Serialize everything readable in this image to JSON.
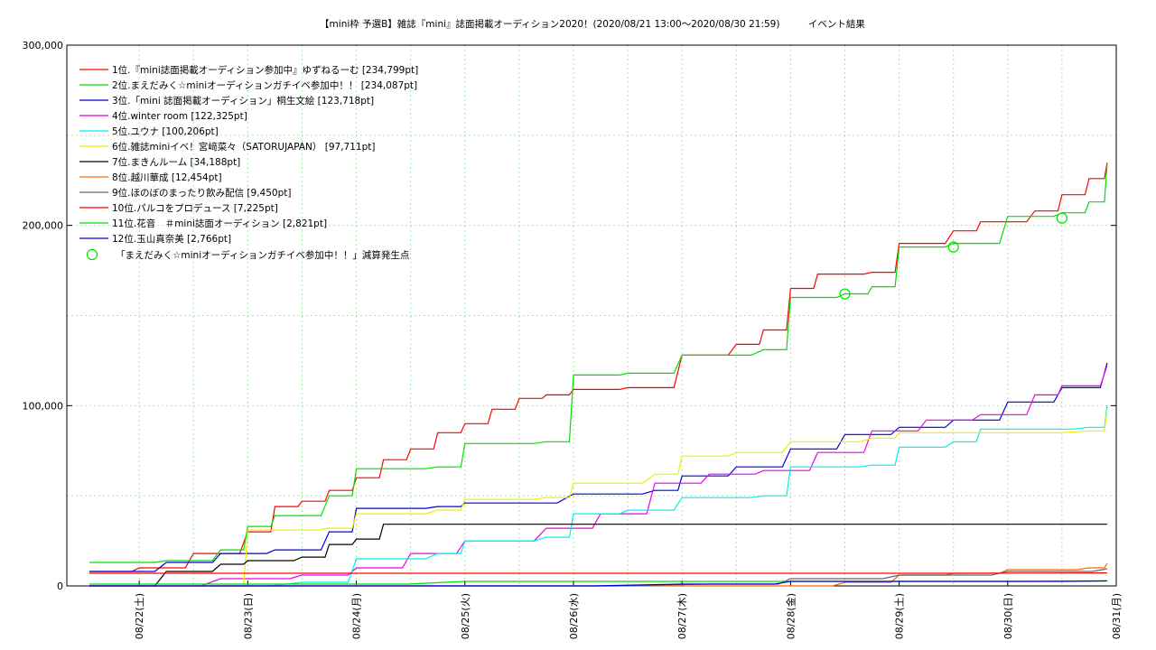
{
  "chart_data": {
    "type": "line",
    "title": "【mini枠 予選B】雑誌『mini』誌面掲載オーディション2020！(2020/08/21 13:00〜2020/08/30 21:59)　　　イベント結果",
    "xlabel": "",
    "ylabel": "",
    "x_ticks": [
      "08/22(土)",
      "08/23(日)",
      "08/24(月)",
      "08/25(火)",
      "08/26(水)",
      "08/27(木)",
      "08/28(金)",
      "08/29(土)",
      "08/30(日)",
      "08/31(月)"
    ],
    "xlim": [
      "2020-08-21 08:00",
      "2020-08-31 00:00"
    ],
    "ylim": [
      0,
      300000
    ],
    "y_ticks": [
      "0",
      "100,000",
      "200,000",
      "300,000"
    ],
    "y_tick_values": [
      0,
      100000,
      200000,
      300000
    ],
    "grid": true,
    "legend_position": "top-left",
    "series": [
      {
        "name": "1位.『mini誌面掲載オーディション参加中』ゆずねるーむ [234,799pt]",
        "color": "#ff0000",
        "points": [
          [
            "2020-08-21 13:00",
            8000
          ],
          [
            "2020-08-22 00:00",
            10000
          ],
          [
            "2020-08-22 12:00",
            18000
          ],
          [
            "2020-08-23 00:00",
            30000
          ],
          [
            "2020-08-23 06:00",
            44000
          ],
          [
            "2020-08-23 12:00",
            47000
          ],
          [
            "2020-08-23 18:00",
            53000
          ],
          [
            "2020-08-24 00:00",
            60000
          ],
          [
            "2020-08-24 06:00",
            70000
          ],
          [
            "2020-08-24 12:00",
            76000
          ],
          [
            "2020-08-24 18:00",
            85000
          ],
          [
            "2020-08-25 00:00",
            90000
          ],
          [
            "2020-08-25 06:00",
            98000
          ],
          [
            "2020-08-25 12:00",
            104000
          ],
          [
            "2020-08-25 18:00",
            106000
          ],
          [
            "2020-08-26 00:00",
            109000
          ],
          [
            "2020-08-26 12:00",
            110000
          ],
          [
            "2020-08-27 00:00",
            128000
          ],
          [
            "2020-08-27 12:00",
            134000
          ],
          [
            "2020-08-27 18:00",
            142000
          ],
          [
            "2020-08-28 00:00",
            165000
          ],
          [
            "2020-08-28 06:00",
            173000
          ],
          [
            "2020-08-28 18:00",
            174000
          ],
          [
            "2020-08-29 00:00",
            190000
          ],
          [
            "2020-08-29 12:00",
            197000
          ],
          [
            "2020-08-29 18:00",
            202000
          ],
          [
            "2020-08-30 06:00",
            208000
          ],
          [
            "2020-08-30 12:00",
            217000
          ],
          [
            "2020-08-30 18:00",
            226000
          ],
          [
            "2020-08-30 21:59",
            234799
          ]
        ]
      },
      {
        "name": "2位.まえだみく☆miniオーディションガチイベ参加中！！ [234,087pt]",
        "color": "#00e000",
        "points": [
          [
            "2020-08-21 13:00",
            13000
          ],
          [
            "2020-08-22 06:00",
            14000
          ],
          [
            "2020-08-22 18:00",
            20000
          ],
          [
            "2020-08-23 00:00",
            33000
          ],
          [
            "2020-08-23 06:00",
            39000
          ],
          [
            "2020-08-23 18:00",
            50000
          ],
          [
            "2020-08-24 00:00",
            65000
          ],
          [
            "2020-08-24 18:00",
            66000
          ],
          [
            "2020-08-25 00:00",
            79000
          ],
          [
            "2020-08-25 18:00",
            80000
          ],
          [
            "2020-08-26 00:00",
            117000
          ],
          [
            "2020-08-26 12:00",
            118000
          ],
          [
            "2020-08-27 00:00",
            128000
          ],
          [
            "2020-08-27 18:00",
            131000
          ],
          [
            "2020-08-28 00:00",
            160000
          ],
          [
            "2020-08-28 12:00",
            162000
          ],
          [
            "2020-08-28 18:00",
            166000
          ],
          [
            "2020-08-29 00:00",
            188000
          ],
          [
            "2020-08-29 12:00",
            190000
          ],
          [
            "2020-08-30 00:00",
            205000
          ],
          [
            "2020-08-30 12:00",
            207000
          ],
          [
            "2020-08-30 18:00",
            213000
          ],
          [
            "2020-08-30 21:59",
            234087
          ]
        ]
      },
      {
        "name": "3位.「mini 誌面掲載オーディション」桐生文絵 [123,718pt]",
        "color": "#0000dd",
        "points": [
          [
            "2020-08-21 13:00",
            8000
          ],
          [
            "2020-08-22 06:00",
            13000
          ],
          [
            "2020-08-22 18:00",
            18000
          ],
          [
            "2020-08-23 06:00",
            20000
          ],
          [
            "2020-08-23 18:00",
            30000
          ],
          [
            "2020-08-24 00:00",
            43000
          ],
          [
            "2020-08-24 18:00",
            44000
          ],
          [
            "2020-08-25 00:00",
            46000
          ],
          [
            "2020-08-26 00:00",
            51000
          ],
          [
            "2020-08-26 18:00",
            53000
          ],
          [
            "2020-08-27 00:00",
            61000
          ],
          [
            "2020-08-27 12:00",
            66000
          ],
          [
            "2020-08-28 00:00",
            76000
          ],
          [
            "2020-08-28 12:00",
            84000
          ],
          [
            "2020-08-29 00:00",
            88000
          ],
          [
            "2020-08-29 12:00",
            92000
          ],
          [
            "2020-08-30 00:00",
            102000
          ],
          [
            "2020-08-30 12:00",
            110000
          ],
          [
            "2020-08-30 21:59",
            123718
          ]
        ]
      },
      {
        "name": "4位.winter room [122,325pt]",
        "color": "#ee00ee",
        "points": [
          [
            "2020-08-21 13:00",
            0
          ],
          [
            "2020-08-22 18:00",
            4000
          ],
          [
            "2020-08-23 12:00",
            6000
          ],
          [
            "2020-08-24 00:00",
            10000
          ],
          [
            "2020-08-24 12:00",
            18000
          ],
          [
            "2020-08-25 00:00",
            25000
          ],
          [
            "2020-08-25 18:00",
            32000
          ],
          [
            "2020-08-26 06:00",
            40000
          ],
          [
            "2020-08-26 18:00",
            57000
          ],
          [
            "2020-08-27 06:00",
            62000
          ],
          [
            "2020-08-27 18:00",
            64000
          ],
          [
            "2020-08-28 06:00",
            74000
          ],
          [
            "2020-08-28 18:00",
            86000
          ],
          [
            "2020-08-29 06:00",
            92000
          ],
          [
            "2020-08-29 18:00",
            95000
          ],
          [
            "2020-08-30 06:00",
            106000
          ],
          [
            "2020-08-30 12:00",
            111000
          ],
          [
            "2020-08-30 21:59",
            122325
          ]
        ]
      },
      {
        "name": "5位.ユウナ [100,206pt]",
        "color": "#00eeee",
        "points": [
          [
            "2020-08-21 13:00",
            0
          ],
          [
            "2020-08-23 12:00",
            2000
          ],
          [
            "2020-08-24 00:00",
            15000
          ],
          [
            "2020-08-24 18:00",
            18000
          ],
          [
            "2020-08-25 00:00",
            25000
          ],
          [
            "2020-08-25 18:00",
            27000
          ],
          [
            "2020-08-26 00:00",
            40000
          ],
          [
            "2020-08-26 12:00",
            42000
          ],
          [
            "2020-08-27 00:00",
            49000
          ],
          [
            "2020-08-27 18:00",
            50000
          ],
          [
            "2020-08-28 00:00",
            66000
          ],
          [
            "2020-08-28 18:00",
            67000
          ],
          [
            "2020-08-29 00:00",
            77000
          ],
          [
            "2020-08-29 12:00",
            80000
          ],
          [
            "2020-08-29 18:00",
            87000
          ],
          [
            "2020-08-30 18:00",
            88000
          ],
          [
            "2020-08-30 21:59",
            100206
          ]
        ]
      },
      {
        "name": "6位.雑誌miniイベ！宮﨑菜々（SATORUJAPAN） [97,711pt]",
        "color": "#eeee00",
        "points": [
          [
            "2020-08-21 13:00",
            0
          ],
          [
            "2020-08-22 18:00",
            0
          ],
          [
            "2020-08-23 00:00",
            31000
          ],
          [
            "2020-08-23 18:00",
            32000
          ],
          [
            "2020-08-24 00:00",
            40000
          ],
          [
            "2020-08-24 18:00",
            42000
          ],
          [
            "2020-08-25 00:00",
            48000
          ],
          [
            "2020-08-25 18:00",
            49000
          ],
          [
            "2020-08-26 00:00",
            57000
          ],
          [
            "2020-08-26 18:00",
            62000
          ],
          [
            "2020-08-27 00:00",
            72000
          ],
          [
            "2020-08-27 12:00",
            74000
          ],
          [
            "2020-08-28 00:00",
            80000
          ],
          [
            "2020-08-28 18:00",
            82000
          ],
          [
            "2020-08-29 00:00",
            85000
          ],
          [
            "2020-08-30 18:00",
            86000
          ],
          [
            "2020-08-30 21:59",
            97711
          ]
        ]
      },
      {
        "name": "7位.まきんルーム [34,188pt]",
        "color": "#000000",
        "points": [
          [
            "2020-08-21 13:00",
            0
          ],
          [
            "2020-08-22 06:00",
            8000
          ],
          [
            "2020-08-22 18:00",
            12000
          ],
          [
            "2020-08-23 00:00",
            14000
          ],
          [
            "2020-08-23 12:00",
            16000
          ],
          [
            "2020-08-23 18:00",
            23000
          ],
          [
            "2020-08-24 00:00",
            26000
          ],
          [
            "2020-08-24 06:00",
            34188
          ],
          [
            "2020-08-30 21:59",
            34188
          ]
        ]
      },
      {
        "name": "8位.越川華成 [12,454pt]",
        "color": "#ff6600",
        "points": [
          [
            "2020-08-21 13:00",
            0
          ],
          [
            "2020-08-27 18:00",
            0
          ],
          [
            "2020-08-28 12:00",
            2000
          ],
          [
            "2020-08-29 00:00",
            6000
          ],
          [
            "2020-08-29 12:00",
            7000
          ],
          [
            "2020-08-30 00:00",
            9000
          ],
          [
            "2020-08-30 18:00",
            10000
          ],
          [
            "2020-08-30 21:59",
            12454
          ]
        ]
      },
      {
        "name": "9位.ほのぼのまったり飲み配信 [9,450pt]",
        "color": "#666666",
        "points": [
          [
            "2020-08-21 13:00",
            0
          ],
          [
            "2020-08-27 06:00",
            1000
          ],
          [
            "2020-08-28 00:00",
            4000
          ],
          [
            "2020-08-29 00:00",
            6000
          ],
          [
            "2020-08-30 00:00",
            8000
          ],
          [
            "2020-08-30 21:59",
            9450
          ]
        ]
      },
      {
        "name": "10位.パルコをプロデュース [7,225pt]",
        "color": "#ff0000",
        "points": [
          [
            "2020-08-21 13:00",
            7000
          ],
          [
            "2020-08-30 21:59",
            7225
          ]
        ]
      },
      {
        "name": "11位.花音　＃mini誌面オーディション [2,821pt]",
        "color": "#00e000",
        "points": [
          [
            "2020-08-21 13:00",
            1000
          ],
          [
            "2020-08-25 00:00",
            2500
          ],
          [
            "2020-08-30 21:59",
            2821
          ]
        ]
      },
      {
        "name": "12位.玉山真奈美 [2,766pt]",
        "color": "#0000dd",
        "points": [
          [
            "2020-08-21 13:00",
            0
          ],
          [
            "2020-08-27 00:00",
            1000
          ],
          [
            "2020-08-28 00:00",
            2500
          ],
          [
            "2020-08-30 21:59",
            2766
          ]
        ]
      }
    ],
    "markers": {
      "name": "「まえだみく☆miniオーディションガチイベ参加中！！」減算発生点",
      "color": "#00e000",
      "points": [
        [
          "2020-08-28 12:00",
          162000
        ],
        [
          "2020-08-29 12:00",
          188000
        ],
        [
          "2020-08-30 12:00",
          204000
        ]
      ]
    }
  }
}
